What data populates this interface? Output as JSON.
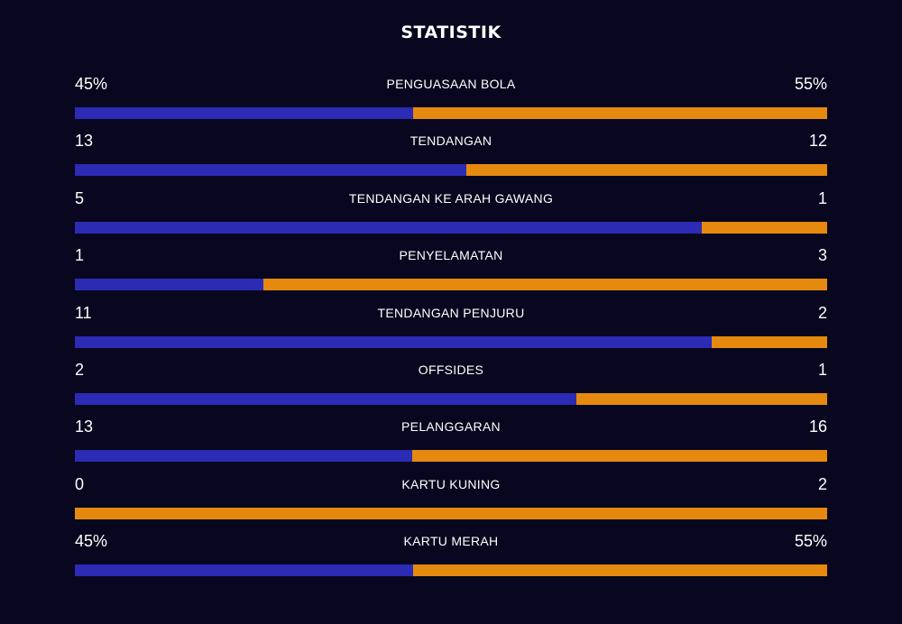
{
  "title": "STATISTIK",
  "colors": {
    "background": "#08071f",
    "home": "#2b2bb4",
    "away": "#e6890f"
  },
  "stats": [
    {
      "label": "PENGUASAAN BOLA",
      "left": "45%",
      "right": "55%",
      "home_share": 0.45
    },
    {
      "label": "TENDANGAN",
      "left": "13",
      "right": "12",
      "home_share": 0.52
    },
    {
      "label": "TENDANGAN KE ARAH GAWANG",
      "left": "5",
      "right": "1",
      "home_share": 0.833
    },
    {
      "label": "PENYELAMATAN",
      "left": "1",
      "right": "3",
      "home_share": 0.25
    },
    {
      "label": "TENDANGAN PENJURU",
      "left": "11",
      "right": "2",
      "home_share": 0.846
    },
    {
      "label": "OFFSIDES",
      "left": "2",
      "right": "1",
      "home_share": 0.667
    },
    {
      "label": "PELANGGARAN",
      "left": "13",
      "right": "16",
      "home_share": 0.448
    },
    {
      "label": "KARTU KUNING",
      "left": "0",
      "right": "2",
      "home_share": 0.0
    },
    {
      "label": "KARTU MERAH",
      "left": "45%",
      "right": "55%",
      "home_share": 0.45
    }
  ]
}
